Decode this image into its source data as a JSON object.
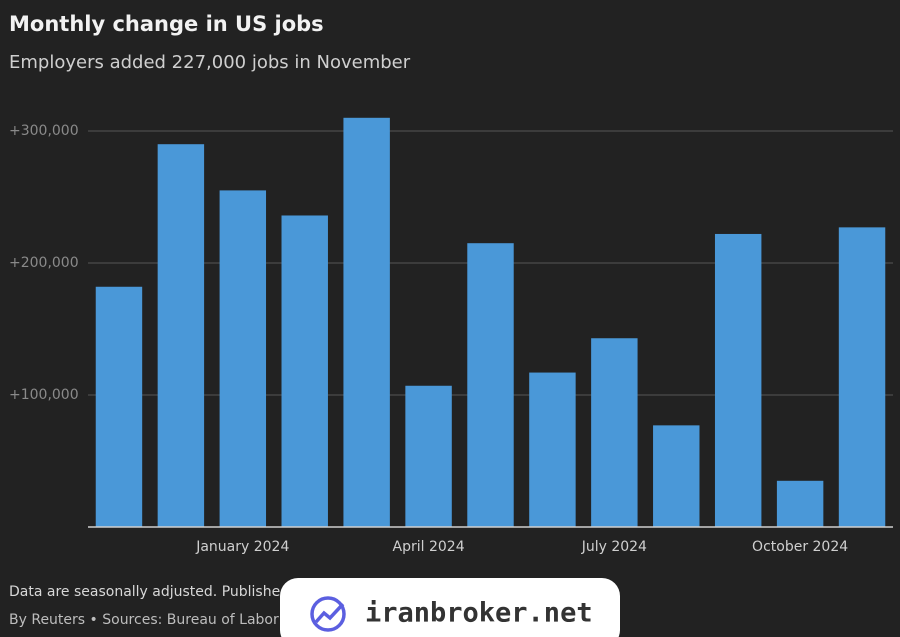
{
  "chart_data": {
    "type": "bar",
    "title": "Monthly change in US jobs",
    "subtitle": "Employers added 227,000 jobs in November",
    "categories": [
      null,
      null,
      "January 2024",
      null,
      null,
      "April 2024",
      null,
      null,
      "July 2024",
      null,
      null,
      "October 2024",
      null
    ],
    "values": [
      182000,
      290000,
      255000,
      236000,
      310000,
      107000,
      215000,
      117000,
      143000,
      77000,
      222000,
      35000,
      227000
    ],
    "color": "#4a98d8",
    "ylim": [
      0,
      320000
    ],
    "yticks": [
      {
        "value": 100000,
        "label": "+100,000"
      },
      {
        "value": 200000,
        "label": "+200,000"
      },
      {
        "value": 300000,
        "label": "+300,000"
      }
    ],
    "grid": true,
    "note": "Data are seasonally adjusted. Publishe",
    "source": "By Reuters • Sources: Bureau of Labor"
  },
  "watermark": "iranbroker.net"
}
